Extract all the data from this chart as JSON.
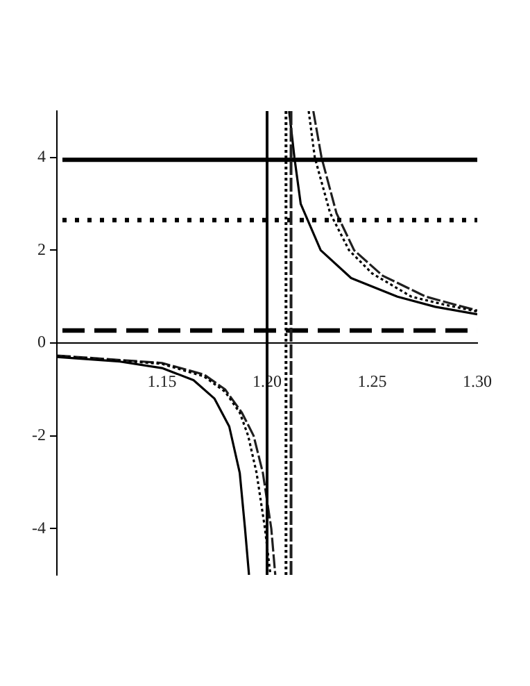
{
  "chart_data": {
    "type": "line",
    "xlim": [
      1.1,
      1.3
    ],
    "ylim": [
      -5,
      5
    ],
    "xticks": [
      1.15,
      {
        "value": 1.2,
        "label": "1.20"
      },
      1.25,
      {
        "value": 1.3,
        "label": "1.30"
      }
    ],
    "yticks": [
      -4,
      -2,
      0,
      2,
      4
    ],
    "grid": false,
    "legend": false,
    "marker": "none",
    "series": [
      {
        "color": "#000000",
        "line_style": "solid",
        "x": [
          1.1,
          1.13,
          1.15,
          1.165,
          1.175,
          1.182,
          1.187,
          1.1895,
          1.1914,
          null,
          1.2105,
          1.213,
          1.216,
          1.2255,
          1.24,
          1.262,
          1.28,
          1.3
        ],
        "values": [
          -0.3,
          -0.4,
          -0.54,
          -0.8,
          -1.2,
          -1.8,
          -2.8,
          -4,
          -5,
          null,
          5,
          4,
          3,
          2,
          1.4,
          1,
          0.78,
          0.62
        ]
      },
      {
        "color": "#000000",
        "line_style": "dotted",
        "x": [
          1.1,
          1.15,
          1.17,
          1.18,
          1.187,
          1.191,
          1.195,
          1.199,
          1.2016,
          null,
          1.2198,
          1.2227,
          1.23,
          1.239,
          1.25,
          1.2686,
          1.285,
          1.3
        ],
        "values": [
          -0.28,
          -0.45,
          -0.72,
          -1.05,
          -1.5,
          -2,
          -2.8,
          -4,
          -5,
          null,
          5,
          4,
          2.8,
          2,
          1.5,
          1,
          0.82,
          0.68
        ]
      },
      {
        "color": "#1f1f1f",
        "line_style": "dashed",
        "x": [
          1.1,
          1.15,
          1.17,
          1.18,
          1.188,
          1.1936,
          1.198,
          1.202,
          1.2039,
          null,
          1.222,
          1.2259,
          1.233,
          1.2414,
          1.255,
          1.2755,
          1.29,
          1.3
        ],
        "values": [
          -0.27,
          -0.43,
          -0.68,
          -1.0,
          -1.5,
          -2,
          -2.8,
          -4,
          -5,
          null,
          5,
          4,
          2.8,
          2,
          1.45,
          1,
          0.82,
          0.7
        ]
      }
    ],
    "ref_lines": [
      {
        "axis": "y",
        "value": 3.95,
        "color": "#000000",
        "line_style": "solid"
      },
      {
        "axis": "y",
        "value": 2.65,
        "color": "#000000",
        "line_style": "dotted"
      },
      {
        "axis": "y",
        "value": 0.27,
        "color": "#000000",
        "line_style": "dashed"
      },
      {
        "axis": "x",
        "value": 1.2,
        "color": "#000000",
        "line_style": "solid"
      },
      {
        "axis": "x",
        "value": 1.209,
        "color": "#000000",
        "line_style": "dotted"
      },
      {
        "axis": "x",
        "value": 1.2114,
        "color": "#1f1f1f",
        "line_style": "dashed"
      }
    ]
  }
}
